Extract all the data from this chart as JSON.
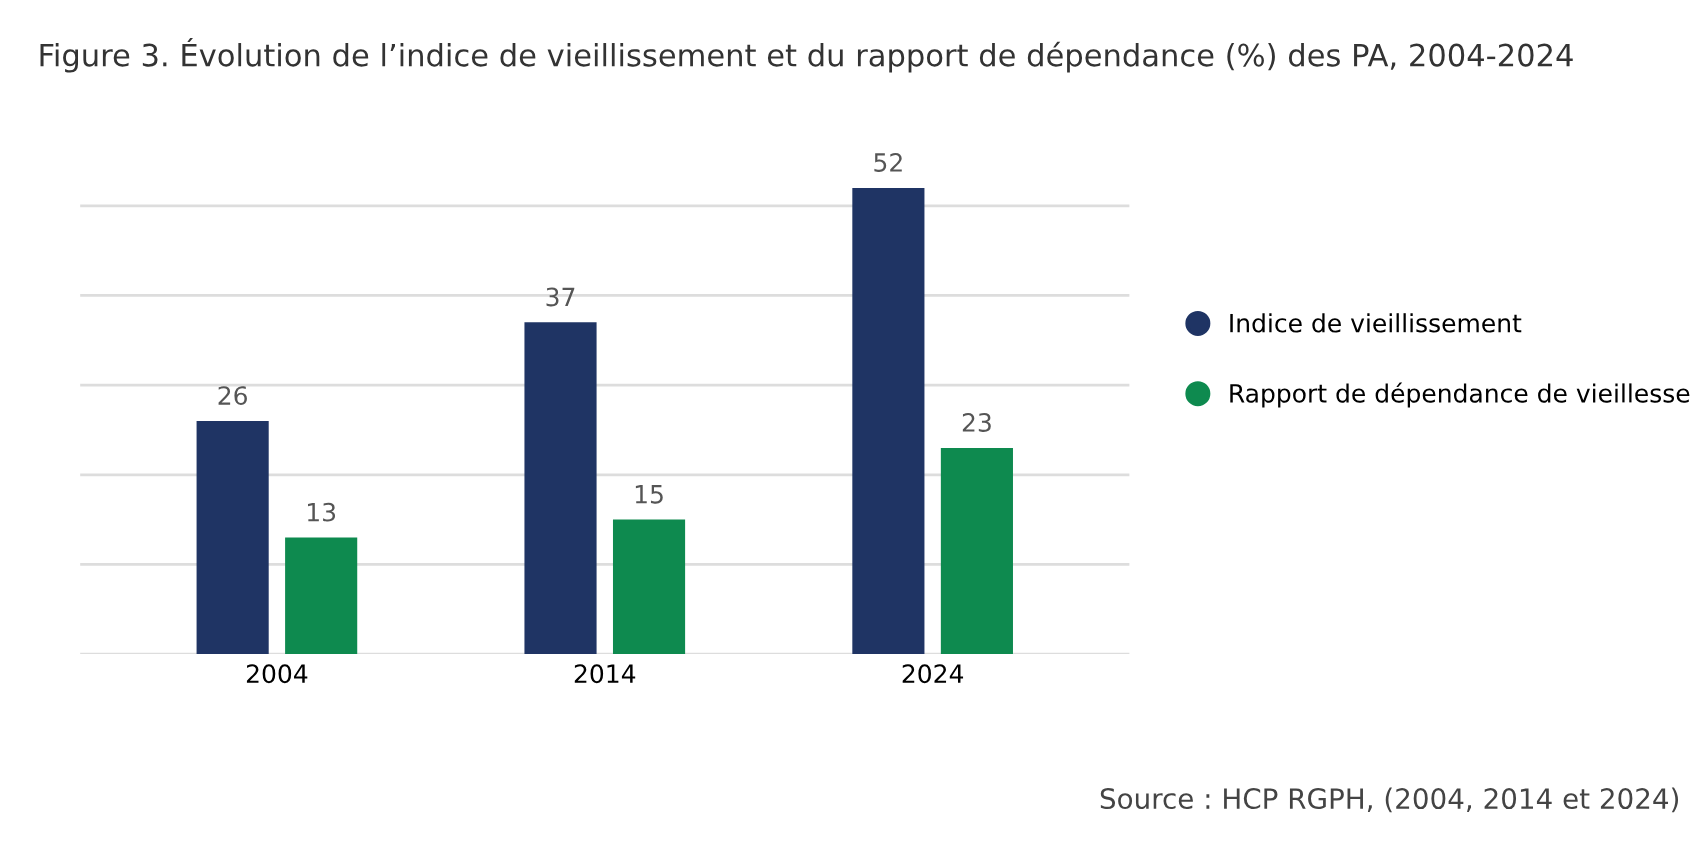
{
  "chart_data": {
    "type": "bar",
    "title": "Figure 3. Évolution de l’indice de vieillissement et du rapport de dépendance (%) des PA, 2004-2024",
    "categories": [
      "2004",
      "2014",
      "2024"
    ],
    "series": [
      {
        "name": "Indice de vieillissement",
        "color": "#1f3464",
        "values": [
          26,
          37,
          52
        ]
      },
      {
        "name": "Rapport de dépendance de vieillesse",
        "color": "#0e8a4f",
        "values": [
          13,
          15,
          23
        ]
      }
    ],
    "yticks": [
      {
        "value": 0,
        "label": null
      },
      {
        "value": 10,
        "label": null
      },
      {
        "value": 20,
        "label": null
      },
      {
        "value": 30,
        "label": null
      },
      {
        "value": 40,
        "label": null
      },
      {
        "value": 50,
        "label": null
      }
    ],
    "tick_labels": "x",
    "grid": "y",
    "legend": "right",
    "data_labels": true,
    "annotations": [
      "Source : HCP RGPH, (2004, 2014 et 2024)"
    ]
  }
}
